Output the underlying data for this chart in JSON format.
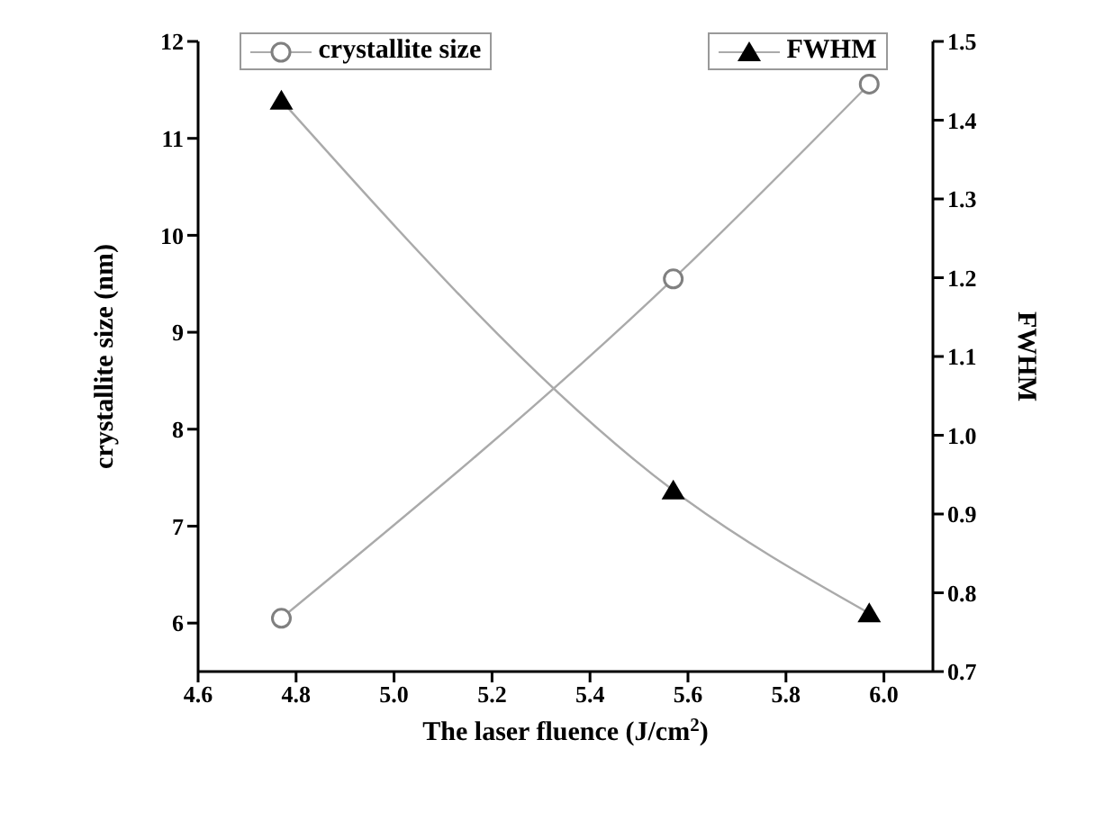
{
  "chart_data": {
    "type": "line",
    "xlabel": "The laser fluence (J/cm$^{2}$)",
    "ylabel": "crystallite size (nm)",
    "y2label": "FWHM",
    "x": [
      4.77,
      5.57,
      5.97
    ],
    "series": [
      {
        "name": "crystallite size",
        "color": "#808080",
        "marker": "circle",
        "values": [
          6.05,
          9.55,
          11.56
        ]
      },
      {
        "name": "FWHM",
        "color": "#000000",
        "marker": "triangle",
        "axis": "y2",
        "values": [
          1.425,
          0.93,
          0.774
        ]
      }
    ],
    "xlim": [
      4.6,
      6.1
    ],
    "xticks": [
      4.6,
      4.8,
      {
        "value": 5,
        "label": "5.0"
      },
      5.2,
      5.4,
      5.6,
      5.8,
      {
        "value": 6,
        "label": "6.0"
      }
    ],
    "ylim": [
      5.5,
      12
    ],
    "yticks": [
      6,
      7,
      8,
      9,
      10,
      11,
      12
    ],
    "y2lim": [
      0.7,
      1.5
    ],
    "y2ticks": [
      0.7,
      0.8,
      0.9,
      {
        "value": 1,
        "label": "1.0"
      },
      1.1,
      1.2,
      1.3,
      1.4,
      1.5
    ],
    "grid": false,
    "legend": "top",
    "line_style": "solid"
  }
}
